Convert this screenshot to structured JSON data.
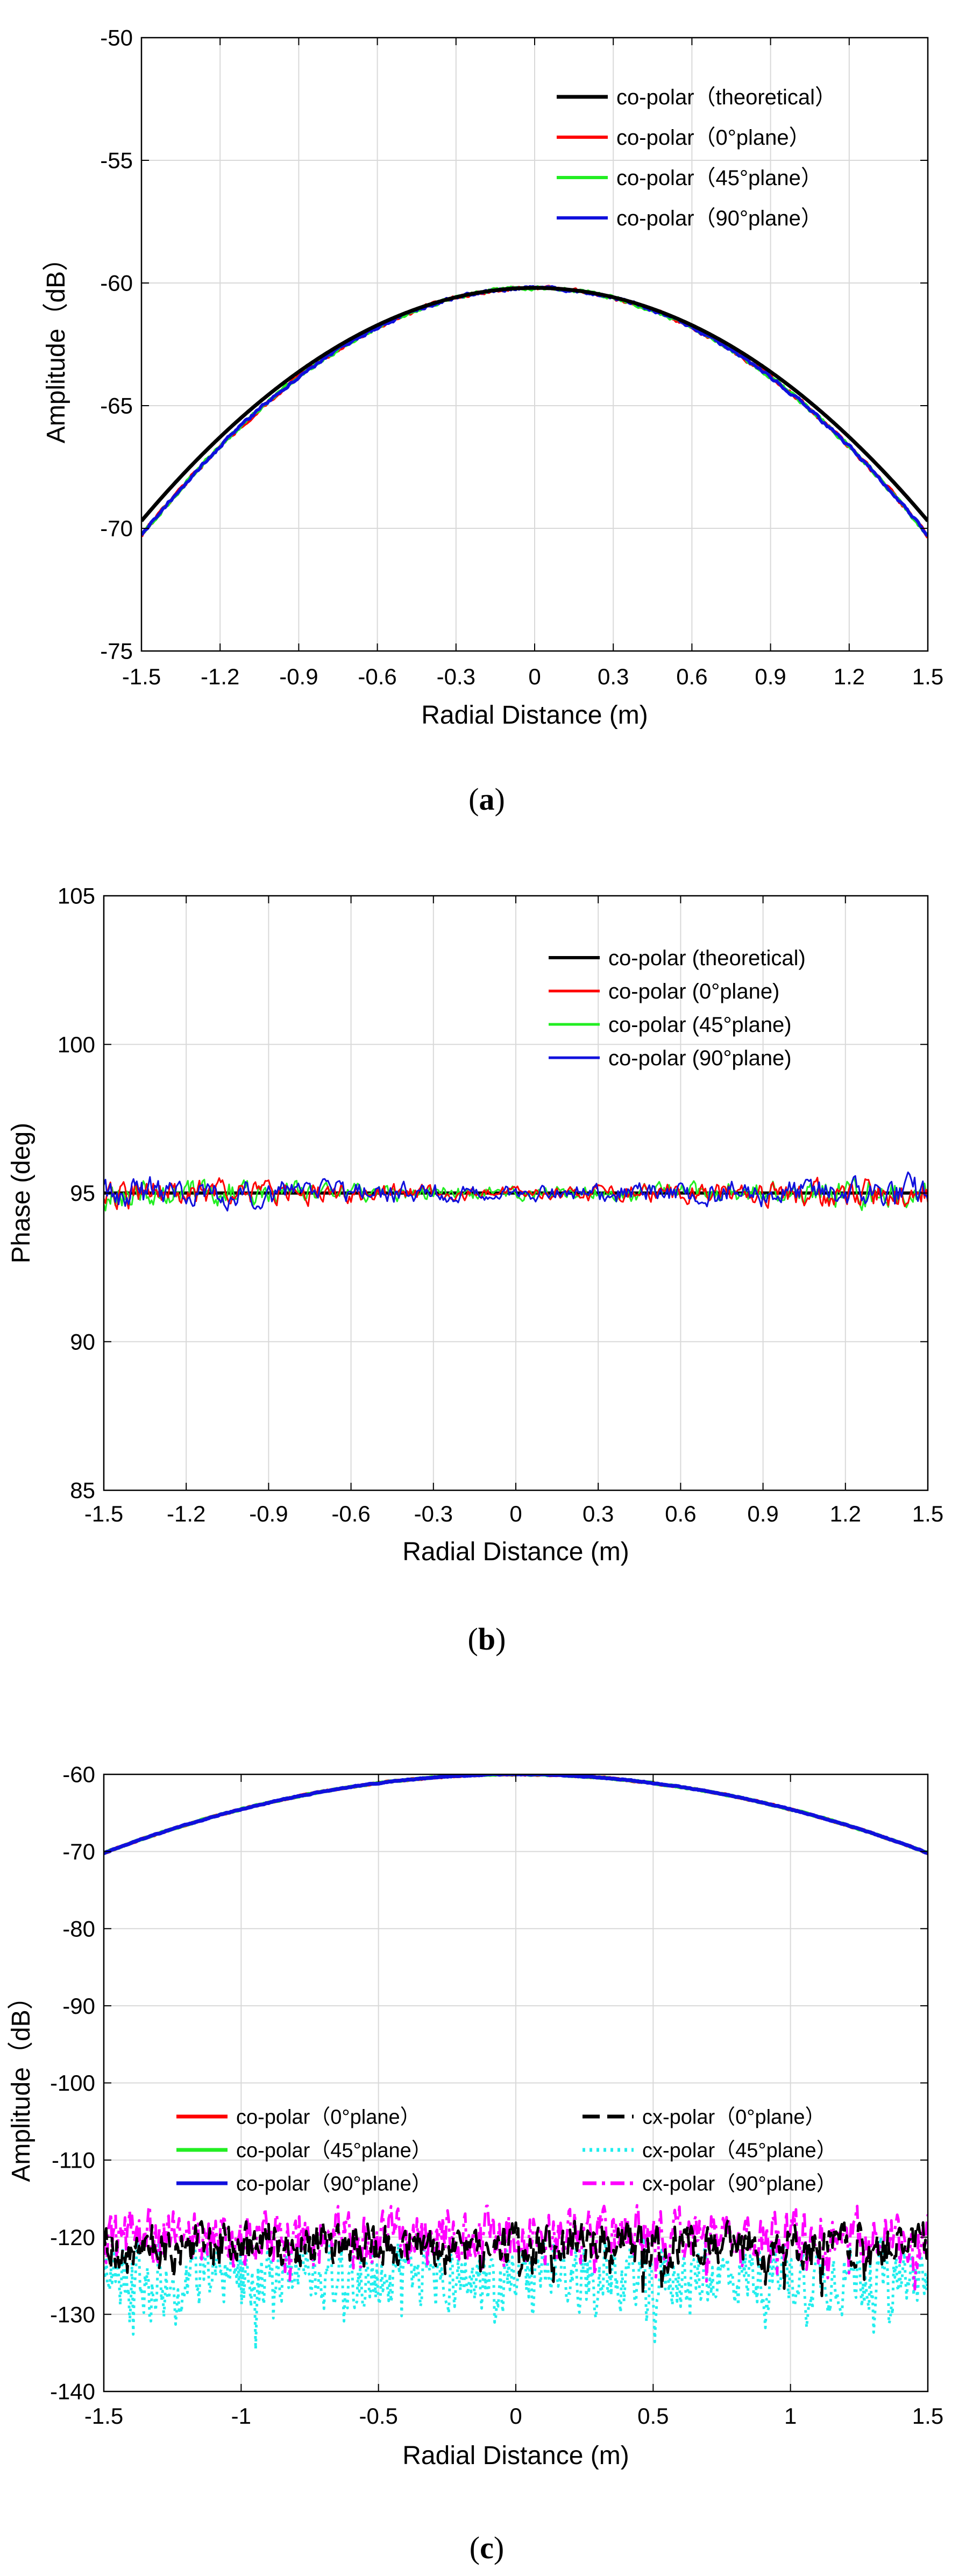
{
  "figure": {
    "panels": [
      {
        "id": "a",
        "caption_open": "(",
        "caption_letter": "a",
        "caption_close": ")"
      },
      {
        "id": "b",
        "caption_open": "(",
        "caption_letter": "b",
        "caption_close": ")"
      },
      {
        "id": "c",
        "caption_open": "(",
        "caption_letter": "c",
        "caption_close": ")"
      }
    ]
  },
  "colors": {
    "theoretical": "#000000",
    "plane0": "#ff0000",
    "plane45": "#22ee22",
    "plane90": "#1010dd",
    "cx0": "#000000",
    "cx45": "#22eeee",
    "cx90": "#ff00ff",
    "grid": "#d9d9d9",
    "axis": "#000000"
  },
  "chart_data": [
    {
      "id": "a",
      "type": "line",
      "title": "",
      "xlabel": "Radial Distance (m)",
      "ylabel": "Amplitude（dB）",
      "xlim": [
        -1.5,
        1.5
      ],
      "ylim": [
        -75,
        -50
      ],
      "xticks": [
        -1.5,
        -1.2,
        -0.9,
        -0.6,
        -0.3,
        0,
        0.3,
        0.6,
        0.9,
        1.2,
        1.5
      ],
      "xtick_labels": [
        "-1.5",
        "-1.2",
        "-0.9",
        "-0.6",
        "-0.3",
        "0",
        "0.3",
        "0.6",
        "0.9",
        "1.2",
        "1.5"
      ],
      "yticks": [
        -75,
        -70,
        -65,
        -60,
        -55,
        -50
      ],
      "ytick_labels": [
        "-75",
        "-70",
        "-65",
        "-60",
        "-55",
        "-50"
      ],
      "grid": true,
      "legend_position": "top-right",
      "series": [
        {
          "name": "co-polar（theoretical）",
          "color_key": "theoretical",
          "model": "parabola",
          "center": -60.2,
          "edge": -69.7,
          "noise": 0,
          "seed": 1
        },
        {
          "name": "co-polar（0°plane）",
          "color_key": "plane0",
          "model": "parabola",
          "center": -60.2,
          "edge": -70.3,
          "noise": 0.12,
          "seed": 2
        },
        {
          "name": "co-polar（45°plane）",
          "color_key": "plane45",
          "model": "parabola",
          "center": -60.2,
          "edge": -70.3,
          "noise": 0.12,
          "seed": 3
        },
        {
          "name": "co-polar（90°plane）",
          "color_key": "plane90",
          "model": "parabola",
          "center": -60.2,
          "edge": -70.3,
          "noise": 0.12,
          "seed": 4
        }
      ]
    },
    {
      "id": "b",
      "type": "line",
      "title": "",
      "xlabel": "Radial Distance (m)",
      "ylabel": "Phase (deg)",
      "xlim": [
        -1.5,
        1.5
      ],
      "ylim": [
        85,
        105
      ],
      "xticks": [
        -1.5,
        -1.2,
        -0.9,
        -0.6,
        -0.3,
        0,
        0.3,
        0.6,
        0.9,
        1.2,
        1.5
      ],
      "xtick_labels": [
        "-1.5",
        "-1.2",
        "-0.9",
        "-0.6",
        "-0.3",
        "0",
        "0.3",
        "0.6",
        "0.9",
        "1.2",
        "1.5"
      ],
      "yticks": [
        85,
        90,
        95,
        100,
        105
      ],
      "ytick_labels": [
        "85",
        "90",
        "95",
        "100",
        "105"
      ],
      "grid": true,
      "legend_position": "top-right",
      "series": [
        {
          "name": "co-polar (theoretical)",
          "color_key": "theoretical",
          "model": "flat",
          "center": 95.0,
          "noise": 0,
          "seed": 5
        },
        {
          "name": "co-polar (0°plane)",
          "color_key": "plane0",
          "model": "flat",
          "center": 95.0,
          "noise": 0.5,
          "seed": 6
        },
        {
          "name": "co-polar (45°plane)",
          "color_key": "plane45",
          "model": "flat",
          "center": 95.0,
          "noise": 0.5,
          "seed": 7
        },
        {
          "name": "co-polar (90°plane)",
          "color_key": "plane90",
          "model": "flat",
          "center": 95.0,
          "noise": 0.55,
          "seed": 8
        }
      ]
    },
    {
      "id": "c",
      "type": "line",
      "title": "",
      "xlabel": "Radial Distance (m)",
      "ylabel": "Amplitude（dB）",
      "xlim": [
        -1.5,
        1.5
      ],
      "ylim": [
        -140,
        -60
      ],
      "xticks": [
        -1.5,
        -1,
        -0.5,
        0,
        0.5,
        1,
        1.5
      ],
      "xtick_labels": [
        "-1.5",
        "-1",
        "-0.5",
        "0",
        "0.5",
        "1",
        "1.5"
      ],
      "yticks": [
        -140,
        -130,
        -120,
        -110,
        -100,
        -90,
        -80,
        -70,
        -60
      ],
      "ytick_labels": [
        "-140",
        "-130",
        "-120",
        "-110",
        "-100",
        "-90",
        "-80",
        "-70",
        "-60"
      ],
      "grid": true,
      "legend_position": "middle",
      "series": [
        {
          "name": "co-polar（0°plane）",
          "color_key": "plane0",
          "style": "solid",
          "model": "parabola",
          "center": -60.0,
          "edge": -70.2,
          "noise": 0.1,
          "seed": 9
        },
        {
          "name": "co-polar（45°plane）",
          "color_key": "plane45",
          "style": "solid",
          "model": "parabola",
          "center": -60.0,
          "edge": -70.2,
          "noise": 0.1,
          "seed": 10
        },
        {
          "name": "co-polar（90°plane）",
          "color_key": "plane90",
          "style": "solid",
          "model": "parabola",
          "center": -60.0,
          "edge": -70.2,
          "noise": 0.1,
          "seed": 11
        },
        {
          "name": "cx-polar（0°plane）",
          "color_key": "cx0",
          "style": "dash",
          "model": "noise",
          "center": -121,
          "noise": 4,
          "seed": 12
        },
        {
          "name": "cx-polar（45°plane）",
          "color_key": "cx45",
          "style": "dot",
          "model": "noise",
          "center": -125,
          "noise": 6,
          "seed": 13
        },
        {
          "name": "cx-polar（90°plane）",
          "color_key": "cx90",
          "style": "dashdot",
          "model": "noise",
          "center": -120,
          "noise": 5,
          "seed": 14
        }
      ]
    }
  ]
}
